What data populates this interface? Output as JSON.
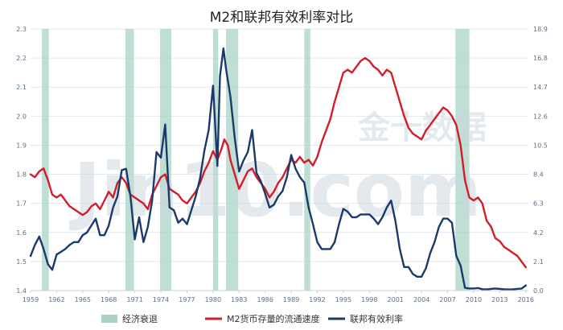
{
  "chart_data": {
    "type": "line",
    "title": "M2和联邦有效利率对比",
    "watermark": {
      "cn": "金十数据",
      "en": "Jin10.com"
    },
    "xlim": [
      1959,
      2016.3
    ],
    "x_ticks": [
      "1959",
      "1962",
      "1965",
      "1968",
      "1971",
      "1974",
      "1977",
      "1980",
      "1983",
      "1986",
      "1989",
      "1992",
      "1995",
      "1998",
      "2001",
      "2004",
      "2007",
      "2010",
      "2013",
      "2016"
    ],
    "ylim_left": [
      1.4,
      2.3
    ],
    "y_ticks_left": [
      "1.4",
      "1.5",
      "1.6",
      "1.7",
      "1.8",
      "1.9",
      "2.0",
      "2.1",
      "2.2",
      "2.3"
    ],
    "ylim_right": [
      0.0,
      18.9
    ],
    "y_ticks_right": [
      "0.0",
      "2.1",
      "4.2",
      "6.3",
      "8.4",
      "10.5",
      "12.6",
      "14.7",
      "16.8",
      "18.9"
    ],
    "recessions": [
      [
        1960.3,
        1961.1
      ],
      [
        1969.9,
        1970.9
      ],
      [
        1973.9,
        1975.2
      ],
      [
        1980.0,
        1980.6
      ],
      [
        1981.5,
        1982.9
      ],
      [
        1990.5,
        1991.2
      ],
      [
        2007.9,
        2009.5
      ]
    ],
    "legend": {
      "recession": "经济衰退",
      "m2": "M2货币存量的流通速度",
      "fed": "联邦有效利率"
    },
    "colors": {
      "m2": "#d01f2b",
      "fed": "#1b3a6b",
      "recession": "#a9d3c6",
      "grid": "#e2e8ee"
    },
    "series": [
      {
        "key": "m2",
        "name": "M2货币存量的流通速度",
        "axis": "left",
        "points": [
          [
            1959.0,
            1.8
          ],
          [
            1959.5,
            1.79
          ],
          [
            1960.0,
            1.81
          ],
          [
            1960.5,
            1.82
          ],
          [
            1961.0,
            1.78
          ],
          [
            1961.5,
            1.73
          ],
          [
            1962.0,
            1.72
          ],
          [
            1962.5,
            1.73
          ],
          [
            1963.0,
            1.71
          ],
          [
            1963.5,
            1.69
          ],
          [
            1964.0,
            1.68
          ],
          [
            1964.5,
            1.67
          ],
          [
            1965.0,
            1.66
          ],
          [
            1965.5,
            1.67
          ],
          [
            1966.0,
            1.69
          ],
          [
            1966.5,
            1.7
          ],
          [
            1967.0,
            1.68
          ],
          [
            1967.5,
            1.71
          ],
          [
            1968.0,
            1.74
          ],
          [
            1968.5,
            1.72
          ],
          [
            1969.0,
            1.77
          ],
          [
            1969.5,
            1.79
          ],
          [
            1970.0,
            1.77
          ],
          [
            1970.5,
            1.73
          ],
          [
            1971.0,
            1.72
          ],
          [
            1971.5,
            1.71
          ],
          [
            1972.0,
            1.7
          ],
          [
            1972.5,
            1.68
          ],
          [
            1973.0,
            1.73
          ],
          [
            1973.5,
            1.76
          ],
          [
            1974.0,
            1.79
          ],
          [
            1974.5,
            1.8
          ],
          [
            1975.0,
            1.75
          ],
          [
            1975.5,
            1.74
          ],
          [
            1976.0,
            1.73
          ],
          [
            1976.5,
            1.71
          ],
          [
            1977.0,
            1.7
          ],
          [
            1977.5,
            1.72
          ],
          [
            1978.0,
            1.74
          ],
          [
            1978.5,
            1.77
          ],
          [
            1979.0,
            1.81
          ],
          [
            1979.5,
            1.84
          ],
          [
            1980.0,
            1.88
          ],
          [
            1980.5,
            1.85
          ],
          [
            1981.0,
            1.89
          ],
          [
            1981.3,
            1.92
          ],
          [
            1981.7,
            1.9
          ],
          [
            1982.0,
            1.85
          ],
          [
            1982.5,
            1.8
          ],
          [
            1983.0,
            1.75
          ],
          [
            1983.5,
            1.78
          ],
          [
            1984.0,
            1.81
          ],
          [
            1984.5,
            1.82
          ],
          [
            1985.0,
            1.79
          ],
          [
            1985.5,
            1.77
          ],
          [
            1986.0,
            1.75
          ],
          [
            1986.5,
            1.72
          ],
          [
            1987.0,
            1.74
          ],
          [
            1987.5,
            1.77
          ],
          [
            1988.0,
            1.79
          ],
          [
            1988.5,
            1.82
          ],
          [
            1989.0,
            1.85
          ],
          [
            1989.5,
            1.84
          ],
          [
            1990.0,
            1.86
          ],
          [
            1990.5,
            1.84
          ],
          [
            1991.0,
            1.85
          ],
          [
            1991.5,
            1.83
          ],
          [
            1992.0,
            1.86
          ],
          [
            1992.5,
            1.91
          ],
          [
            1993.0,
            1.95
          ],
          [
            1993.5,
            1.99
          ],
          [
            1994.0,
            2.05
          ],
          [
            1994.5,
            2.1
          ],
          [
            1995.0,
            2.15
          ],
          [
            1995.5,
            2.16
          ],
          [
            1996.0,
            2.15
          ],
          [
            1996.5,
            2.17
          ],
          [
            1997.0,
            2.19
          ],
          [
            1997.5,
            2.2
          ],
          [
            1998.0,
            2.19
          ],
          [
            1998.5,
            2.17
          ],
          [
            1999.0,
            2.16
          ],
          [
            1999.5,
            2.14
          ],
          [
            2000.0,
            2.16
          ],
          [
            2000.5,
            2.15
          ],
          [
            2001.0,
            2.1
          ],
          [
            2001.5,
            2.05
          ],
          [
            2002.0,
            2.0
          ],
          [
            2002.5,
            1.96
          ],
          [
            2003.0,
            1.94
          ],
          [
            2003.5,
            1.93
          ],
          [
            2004.0,
            1.92
          ],
          [
            2004.5,
            1.95
          ],
          [
            2005.0,
            1.97
          ],
          [
            2005.5,
            1.99
          ],
          [
            2006.0,
            2.01
          ],
          [
            2006.5,
            2.03
          ],
          [
            2007.0,
            2.02
          ],
          [
            2007.5,
            2.0
          ],
          [
            2008.0,
            1.97
          ],
          [
            2008.5,
            1.9
          ],
          [
            2009.0,
            1.78
          ],
          [
            2009.5,
            1.72
          ],
          [
            2010.0,
            1.71
          ],
          [
            2010.5,
            1.72
          ],
          [
            2011.0,
            1.7
          ],
          [
            2011.5,
            1.64
          ],
          [
            2012.0,
            1.62
          ],
          [
            2012.5,
            1.58
          ],
          [
            2013.0,
            1.57
          ],
          [
            2013.5,
            1.55
          ],
          [
            2014.0,
            1.54
          ],
          [
            2014.5,
            1.53
          ],
          [
            2015.0,
            1.52
          ],
          [
            2015.5,
            1.5
          ],
          [
            2016.0,
            1.48
          ]
        ]
      },
      {
        "key": "fed",
        "name": "联邦有效利率",
        "axis": "right",
        "points": [
          [
            1959.0,
            2.5
          ],
          [
            1959.5,
            3.3
          ],
          [
            1960.0,
            3.9
          ],
          [
            1960.5,
            3.0
          ],
          [
            1961.0,
            1.9
          ],
          [
            1961.5,
            1.5
          ],
          [
            1962.0,
            2.6
          ],
          [
            1962.5,
            2.8
          ],
          [
            1963.0,
            3.0
          ],
          [
            1963.5,
            3.3
          ],
          [
            1964.0,
            3.5
          ],
          [
            1964.5,
            3.5
          ],
          [
            1965.0,
            4.0
          ],
          [
            1965.5,
            4.2
          ],
          [
            1966.0,
            4.7
          ],
          [
            1966.5,
            5.2
          ],
          [
            1967.0,
            4.0
          ],
          [
            1967.5,
            4.0
          ],
          [
            1968.0,
            4.7
          ],
          [
            1968.5,
            6.0
          ],
          [
            1969.0,
            6.8
          ],
          [
            1969.5,
            8.7
          ],
          [
            1970.0,
            8.8
          ],
          [
            1970.5,
            6.8
          ],
          [
            1971.0,
            3.7
          ],
          [
            1971.5,
            5.3
          ],
          [
            1972.0,
            3.5
          ],
          [
            1972.5,
            4.6
          ],
          [
            1973.0,
            6.5
          ],
          [
            1973.5,
            10.0
          ],
          [
            1974.0,
            9.6
          ],
          [
            1974.5,
            12.0
          ],
          [
            1975.0,
            6.0
          ],
          [
            1975.5,
            5.8
          ],
          [
            1976.0,
            4.9
          ],
          [
            1976.5,
            5.2
          ],
          [
            1977.0,
            4.8
          ],
          [
            1977.5,
            5.8
          ],
          [
            1978.0,
            6.8
          ],
          [
            1978.5,
            8.1
          ],
          [
            1979.0,
            10.1
          ],
          [
            1979.5,
            11.6
          ],
          [
            1980.0,
            14.8
          ],
          [
            1980.5,
            9.0
          ],
          [
            1980.8,
            15.5
          ],
          [
            1981.2,
            17.5
          ],
          [
            1981.5,
            16.0
          ],
          [
            1982.0,
            14.0
          ],
          [
            1982.5,
            11.0
          ],
          [
            1983.0,
            8.6
          ],
          [
            1983.5,
            9.4
          ],
          [
            1984.0,
            10.0
          ],
          [
            1984.5,
            11.6
          ],
          [
            1985.0,
            8.5
          ],
          [
            1985.5,
            7.9
          ],
          [
            1986.0,
            7.0
          ],
          [
            1986.5,
            6.0
          ],
          [
            1987.0,
            6.2
          ],
          [
            1987.5,
            6.8
          ],
          [
            1988.0,
            7.2
          ],
          [
            1988.5,
            8.2
          ],
          [
            1989.0,
            9.8
          ],
          [
            1989.5,
            8.8
          ],
          [
            1990.0,
            8.2
          ],
          [
            1990.5,
            7.8
          ],
          [
            1991.0,
            6.0
          ],
          [
            1991.5,
            4.8
          ],
          [
            1992.0,
            3.5
          ],
          [
            1992.5,
            3.0
          ],
          [
            1993.0,
            3.0
          ],
          [
            1993.5,
            3.0
          ],
          [
            1994.0,
            3.5
          ],
          [
            1994.5,
            4.8
          ],
          [
            1995.0,
            5.9
          ],
          [
            1995.5,
            5.7
          ],
          [
            1996.0,
            5.3
          ],
          [
            1996.5,
            5.3
          ],
          [
            1997.0,
            5.5
          ],
          [
            1997.5,
            5.5
          ],
          [
            1998.0,
            5.5
          ],
          [
            1998.5,
            5.2
          ],
          [
            1999.0,
            4.8
          ],
          [
            1999.5,
            5.3
          ],
          [
            2000.0,
            6.0
          ],
          [
            2000.5,
            6.5
          ],
          [
            2001.0,
            5.0
          ],
          [
            2001.5,
            3.0
          ],
          [
            2002.0,
            1.7
          ],
          [
            2002.5,
            1.7
          ],
          [
            2003.0,
            1.2
          ],
          [
            2003.5,
            1.0
          ],
          [
            2004.0,
            1.0
          ],
          [
            2004.5,
            1.6
          ],
          [
            2005.0,
            2.7
          ],
          [
            2005.5,
            3.5
          ],
          [
            2006.0,
            4.6
          ],
          [
            2006.5,
            5.2
          ],
          [
            2007.0,
            5.2
          ],
          [
            2007.5,
            4.9
          ],
          [
            2008.0,
            2.5
          ],
          [
            2008.5,
            1.8
          ],
          [
            2009.0,
            0.2
          ],
          [
            2009.5,
            0.15
          ],
          [
            2010.0,
            0.15
          ],
          [
            2010.5,
            0.18
          ],
          [
            2011.0,
            0.1
          ],
          [
            2011.5,
            0.08
          ],
          [
            2012.0,
            0.12
          ],
          [
            2012.5,
            0.15
          ],
          [
            2013.0,
            0.12
          ],
          [
            2013.5,
            0.09
          ],
          [
            2014.0,
            0.08
          ],
          [
            2014.5,
            0.09
          ],
          [
            2015.0,
            0.12
          ],
          [
            2015.5,
            0.14
          ],
          [
            2016.0,
            0.37
          ]
        ]
      }
    ]
  }
}
